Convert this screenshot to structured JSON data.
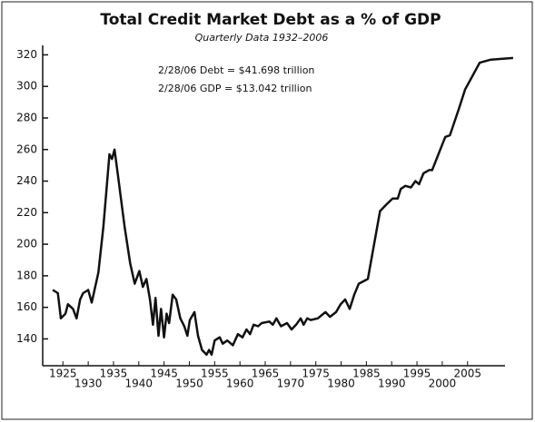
{
  "chart_data": {
    "type": "line",
    "title": "Total Credit Market Debt as a % of GDP",
    "subtitle": "Quarterly Data 1932–2006",
    "annotations": [
      "2/28/06 Debt = $41.698 trillion",
      "2/28/06 GDP = $13.042 trillion"
    ],
    "color": "#111111",
    "x": [
      1923,
      1924,
      1924.6,
      1925.5,
      1926,
      1927,
      1927.7,
      1928.4,
      1929,
      1930,
      1930.7,
      1932,
      1933,
      1934.2,
      1934.7,
      1935.2,
      1935.9,
      1937.2,
      1938.3,
      1939.2,
      1940.1,
      1940.8,
      1941.5,
      1942.2,
      1942.8,
      1943.3,
      1943.9,
      1944.4,
      1945,
      1945.5,
      1946,
      1946.7,
      1947.4,
      1948.2,
      1949,
      1949.6,
      1950.1,
      1951,
      1951.7,
      1952.5,
      1953.4,
      1953.9,
      1954.4,
      1955,
      1956,
      1956.6,
      1957.5,
      1958.6,
      1959.6,
      1960.5,
      1961.3,
      1962,
      1962.7,
      1963.6,
      1964.3,
      1965.8,
      1966.5,
      1967.2,
      1968.1,
      1969.3,
      1970.2,
      1971.1,
      1972,
      1972.6,
      1973.3,
      1974,
      1975.4,
      1976.9,
      1977.8,
      1979,
      1979.9,
      1980.8,
      1981.7,
      1982.6,
      1983.5,
      1985.3,
      1987.7,
      1988.9,
      1990.2,
      1991.2,
      1991.8,
      1992.7,
      1993.8,
      1994.7,
      1995.4,
      1996.3,
      1997.4,
      1998,
      2000.6,
      2001.5,
      2003.3,
      2004.5,
      2007.4,
      2009.6,
      2014
    ],
    "values": [
      171,
      169,
      153,
      156,
      162,
      159,
      153,
      165,
      169,
      171,
      163,
      182,
      211,
      257,
      254,
      260,
      243,
      211,
      188,
      175,
      183,
      173,
      178,
      165,
      149,
      166,
      142,
      159,
      141,
      156,
      150,
      168,
      165,
      153,
      148,
      142,
      152,
      157,
      142,
      133,
      130,
      133,
      130,
      139,
      141,
      137,
      139,
      136,
      143,
      141,
      146,
      143,
      149,
      148,
      150,
      151,
      149,
      153,
      148,
      150,
      146,
      149,
      153,
      149,
      153,
      152,
      153,
      157,
      154,
      157,
      162,
      165,
      159,
      168,
      175,
      178,
      221,
      225,
      229,
      229,
      235,
      237,
      236,
      240,
      238,
      245,
      247,
      247,
      268,
      269,
      286,
      298,
      315,
      317,
      318
    ],
    "xlim": [
      1921,
      2016
    ],
    "xticks": [
      1925,
      1930,
      1935,
      1940,
      1945,
      1950,
      1955,
      1960,
      1965,
      1970,
      1975,
      1980,
      1985,
      1990,
      1995,
      2000,
      2005
    ],
    "ylim": [
      123,
      326
    ],
    "yticks": [
      140,
      160,
      180,
      200,
      220,
      240,
      260,
      280,
      300,
      320
    ]
  }
}
